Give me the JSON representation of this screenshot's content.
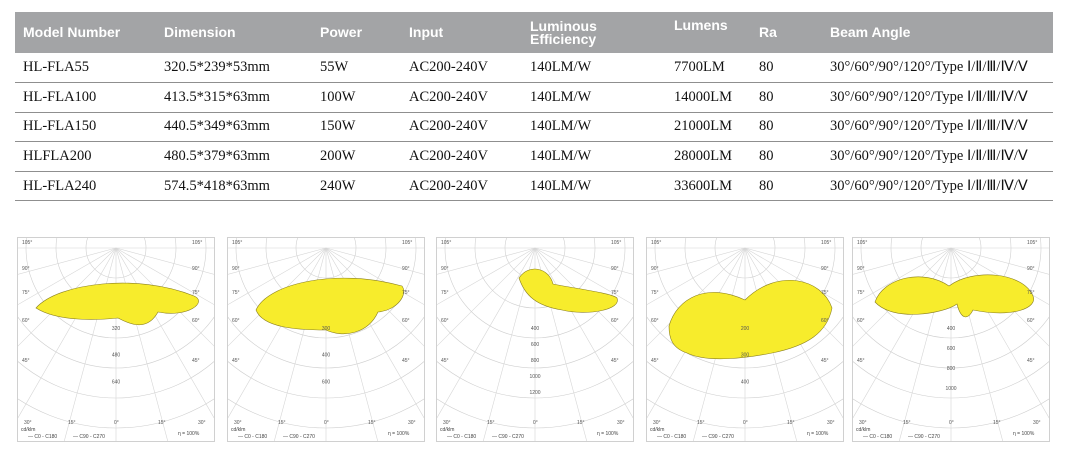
{
  "table": {
    "headers": [
      {
        "label": "Model Number"
      },
      {
        "label": "Dimension"
      },
      {
        "label": "Power"
      },
      {
        "label": "Input"
      },
      {
        "label": "Luminous Efficiency"
      },
      {
        "label": "Lumens"
      },
      {
        "label": "Ra"
      },
      {
        "label": "Beam Angle"
      }
    ],
    "rows": [
      [
        "HL-FLA55",
        "320.5*239*53mm",
        "55W",
        "AC200-240V",
        "140LM/W",
        "7700LM",
        "80",
        "30°/60°/90°/120°/Type Ⅰ/Ⅱ/Ⅲ/Ⅳ/Ⅴ"
      ],
      [
        "HL-FLA100",
        "413.5*315*63mm",
        "100W",
        "AC200-240V",
        "140LM/W",
        "14000LM",
        "80",
        "30°/60°/90°/120°/Type Ⅰ/Ⅱ/Ⅲ/Ⅳ/Ⅴ"
      ],
      [
        "HL-FLA150",
        "440.5*349*63mm",
        "150W",
        "AC200-240V",
        "140LM/W",
        "21000LM",
        "80",
        "30°/60°/90°/120°/Type Ⅰ/Ⅱ/Ⅲ/Ⅳ/Ⅴ"
      ],
      [
        "HLFLA200",
        "480.5*379*63mm",
        "200W",
        "AC200-240V",
        "140LM/W",
        "28000LM",
        "80",
        "30°/60°/90°/120°/Type Ⅰ/Ⅱ/Ⅲ/Ⅳ/Ⅴ"
      ],
      [
        "HL-FLA240",
        "574.5*418*63mm",
        "240W",
        "AC200-240V",
        "140LM/W",
        "33600LM",
        "80",
        "30°/60°/90°/120°/Type Ⅰ/Ⅱ/Ⅲ/Ⅳ/Ⅴ"
      ]
    ]
  },
  "polar_plots": {
    "fill_color": "#f7ec2c",
    "unit_label": "cd/klm",
    "efficiency_label": "η = 100%",
    "legend_c0": "C0 - C180",
    "legend_c90": "C90 - C270",
    "angle_labels": [
      "105°",
      "90°",
      "75°",
      "60°",
      "45°",
      "30°",
      "15°",
      "0°"
    ],
    "plots": [
      {
        "name": "polar-plot-1",
        "radial_labels": [
          "320",
          "480",
          "640"
        ],
        "shape": "wide"
      },
      {
        "name": "polar-plot-2",
        "radial_labels": [
          "300",
          "400",
          "600"
        ],
        "shape": "wide2"
      },
      {
        "name": "polar-plot-3",
        "radial_labels": [
          "400",
          "600",
          "800",
          "1000",
          "1200"
        ],
        "shape": "narrow"
      },
      {
        "name": "polar-plot-4",
        "radial_labels": [
          "200",
          "300",
          "400"
        ],
        "shape": "heart"
      },
      {
        "name": "polar-plot-5",
        "radial_labels": [
          "400",
          "600",
          "800",
          "1000"
        ],
        "shape": "wings"
      }
    ]
  }
}
